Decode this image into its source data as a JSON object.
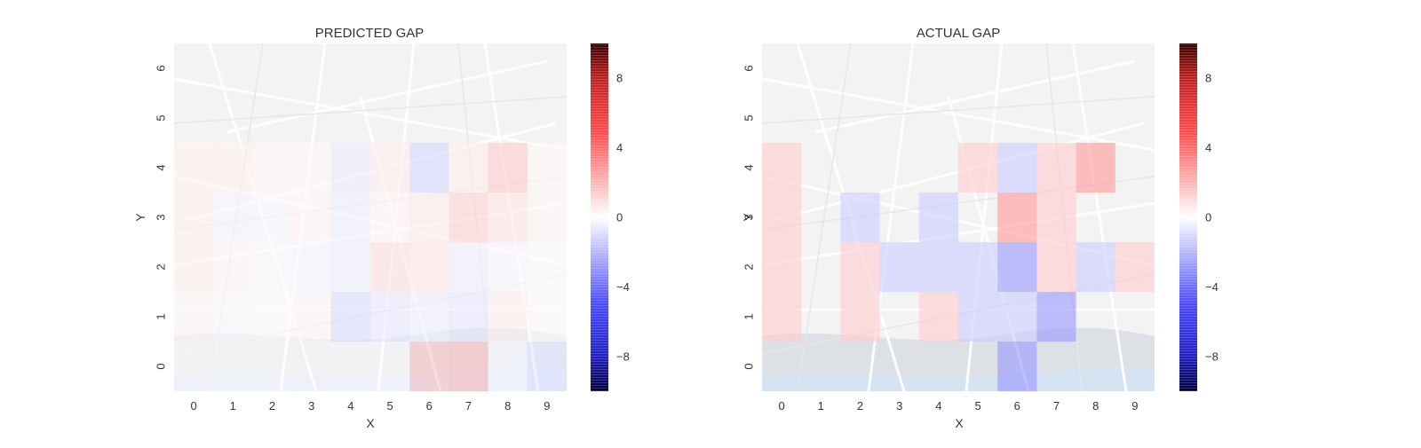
{
  "chart_data": [
    {
      "type": "heatmap",
      "title": "PREDICTED GAP",
      "xlabel": "X",
      "ylabel": "Y",
      "x": [
        0,
        1,
        2,
        3,
        4,
        5,
        6,
        7,
        8,
        9
      ],
      "y": [
        0,
        1,
        2,
        3,
        4,
        5,
        6
      ],
      "vlim": [
        -10,
        10
      ],
      "colorbar_ticks": [
        -8,
        -4,
        0,
        4,
        8
      ],
      "colorbar_tick_labels": [
        "−8",
        "−4",
        "0",
        "4",
        "8"
      ],
      "cells": [
        {
          "x": 0,
          "y": 4,
          "v": 0.6
        },
        {
          "x": 1,
          "y": 4,
          "v": 0.6
        },
        {
          "x": 2,
          "y": 4,
          "v": 0.3
        },
        {
          "x": 3,
          "y": 4,
          "v": 0.3
        },
        {
          "x": 4,
          "y": 4,
          "v": -0.8
        },
        {
          "x": 5,
          "y": 4,
          "v": 0.8
        },
        {
          "x": 6,
          "y": 4,
          "v": -1.6
        },
        {
          "x": 7,
          "y": 4,
          "v": 0.8
        },
        {
          "x": 8,
          "y": 4,
          "v": 2.0
        },
        {
          "x": 9,
          "y": 4,
          "v": 0.3
        },
        {
          "x": 0,
          "y": 3,
          "v": 0.6
        },
        {
          "x": 1,
          "y": 3,
          "v": -0.4
        },
        {
          "x": 2,
          "y": 3,
          "v": -0.3
        },
        {
          "x": 3,
          "y": 3,
          "v": 0.4
        },
        {
          "x": 4,
          "y": 3,
          "v": -0.6
        },
        {
          "x": 5,
          "y": 3,
          "v": 0.4
        },
        {
          "x": 6,
          "y": 3,
          "v": 0.8
        },
        {
          "x": 7,
          "y": 3,
          "v": 1.7
        },
        {
          "x": 8,
          "y": 3,
          "v": 1.0
        },
        {
          "x": 9,
          "y": 3,
          "v": 0.3
        },
        {
          "x": 0,
          "y": 2,
          "v": 0.6
        },
        {
          "x": 1,
          "y": 2,
          "v": 0.3
        },
        {
          "x": 2,
          "y": 2,
          "v": -0.2
        },
        {
          "x": 3,
          "y": 2,
          "v": -0.4
        },
        {
          "x": 4,
          "y": 2,
          "v": -0.6
        },
        {
          "x": 5,
          "y": 2,
          "v": 1.2
        },
        {
          "x": 6,
          "y": 2,
          "v": 0.9
        },
        {
          "x": 7,
          "y": 2,
          "v": -0.6
        },
        {
          "x": 8,
          "y": 2,
          "v": -0.3
        },
        {
          "x": 9,
          "y": 2,
          "v": 0.2
        },
        {
          "x": 0,
          "y": 1,
          "v": 0.3
        },
        {
          "x": 1,
          "y": 1,
          "v": -0.2
        },
        {
          "x": 2,
          "y": 1,
          "v": 0.2
        },
        {
          "x": 3,
          "y": 1,
          "v": 0.4
        },
        {
          "x": 4,
          "y": 1,
          "v": -1.4
        },
        {
          "x": 5,
          "y": 1,
          "v": -0.9
        },
        {
          "x": 6,
          "y": 1,
          "v": -0.6
        },
        {
          "x": 7,
          "y": 1,
          "v": -0.9
        },
        {
          "x": 8,
          "y": 1,
          "v": 0.6
        },
        {
          "x": 9,
          "y": 1,
          "v": 0.2
        },
        {
          "x": 0,
          "y": 0,
          "v": 0.2
        },
        {
          "x": 1,
          "y": 0,
          "v": 0.1
        },
        {
          "x": 2,
          "y": 0,
          "v": 0.1
        },
        {
          "x": 3,
          "y": 0,
          "v": 0.2
        },
        {
          "x": 4,
          "y": 0,
          "v": 0.1
        },
        {
          "x": 5,
          "y": 0,
          "v": 0.1
        },
        {
          "x": 6,
          "y": 0,
          "v": 2.2
        },
        {
          "x": 7,
          "y": 0,
          "v": 2.6
        },
        {
          "x": 8,
          "y": 0,
          "v": -0.2
        },
        {
          "x": 9,
          "y": 0,
          "v": -1.0
        }
      ]
    },
    {
      "type": "heatmap",
      "title": "ACTUAL GAP",
      "xlabel": "X",
      "ylabel": "Y",
      "x": [
        0,
        1,
        2,
        3,
        4,
        5,
        6,
        7,
        8,
        9
      ],
      "y": [
        0,
        1,
        2,
        3,
        4,
        5,
        6
      ],
      "vlim": [
        -10,
        10
      ],
      "colorbar_ticks": [
        -8,
        -4,
        0,
        4,
        8
      ],
      "colorbar_tick_labels": [
        "−8",
        "−4",
        "0",
        "4",
        "8"
      ],
      "cells": [
        {
          "x": 0,
          "y": 4,
          "v": 2.0
        },
        {
          "x": 5,
          "y": 4,
          "v": 2.0
        },
        {
          "x": 6,
          "y": 4,
          "v": -2.0
        },
        {
          "x": 7,
          "y": 4,
          "v": 2.0
        },
        {
          "x": 8,
          "y": 4,
          "v": 4.0
        },
        {
          "x": 0,
          "y": 3,
          "v": 2.0
        },
        {
          "x": 2,
          "y": 3,
          "v": -2.0
        },
        {
          "x": 4,
          "y": 3,
          "v": -2.0
        },
        {
          "x": 6,
          "y": 3,
          "v": 4.0
        },
        {
          "x": 7,
          "y": 3,
          "v": 2.0
        },
        {
          "x": 0,
          "y": 2,
          "v": 2.0
        },
        {
          "x": 2,
          "y": 2,
          "v": 2.0
        },
        {
          "x": 3,
          "y": 2,
          "v": -2.0
        },
        {
          "x": 4,
          "y": 2,
          "v": -2.0
        },
        {
          "x": 5,
          "y": 2,
          "v": -2.0
        },
        {
          "x": 6,
          "y": 2,
          "v": -4.0
        },
        {
          "x": 7,
          "y": 2,
          "v": 2.0
        },
        {
          "x": 8,
          "y": 2,
          "v": -2.0
        },
        {
          "x": 9,
          "y": 2,
          "v": 2.0
        },
        {
          "x": 0,
          "y": 1,
          "v": 2.0
        },
        {
          "x": 2,
          "y": 1,
          "v": 2.0
        },
        {
          "x": 4,
          "y": 1,
          "v": 2.0
        },
        {
          "x": 5,
          "y": 1,
          "v": -2.0
        },
        {
          "x": 6,
          "y": 1,
          "v": -2.0
        },
        {
          "x": 7,
          "y": 1,
          "v": -4.0
        },
        {
          "x": 6,
          "y": 0,
          "v": -4.0
        }
      ]
    }
  ]
}
